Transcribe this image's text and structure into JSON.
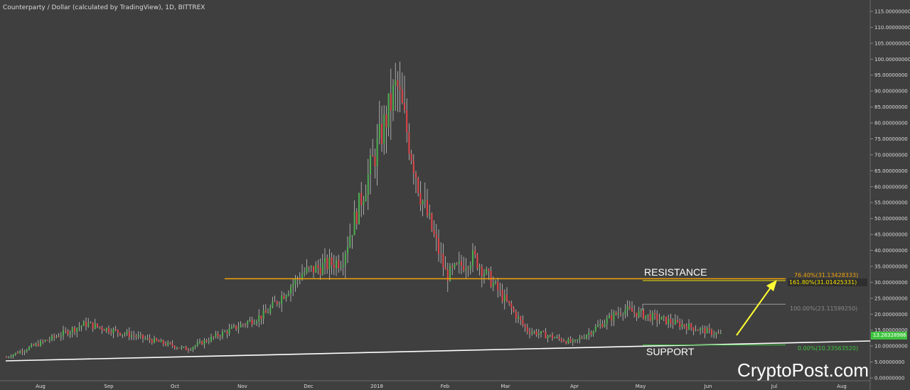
{
  "title": "Counterparty / Dollar (calculated by TradingView), 1D, BITTREX",
  "watermark": "CryptoPost.com",
  "colors": {
    "background": "#3f3f3f",
    "up_candle": "#4caf50",
    "down_candle": "#e0464b",
    "wick": "#d8d8d8",
    "resistance": "#f0a30a",
    "fib_161": "#f5e000",
    "fib_100": "#9a9a9a",
    "fib_0": "#3ec43e",
    "support_line": "#ffffff",
    "arrow": "#ffff33",
    "last_price": "#3ec43e"
  },
  "chart_data": {
    "type": "candlestick",
    "title": "Counterparty / Dollar (calculated by TradingView), 1D, BITTREX",
    "y_ticks": [
      "115.00000000",
      "110.00000000",
      "105.00000000",
      "100.00000000",
      "95.00000000",
      "90.00000000",
      "85.00000000",
      "80.00000000",
      "75.00000000",
      "70.00000000",
      "65.00000000",
      "60.00000000",
      "55.00000000",
      "50.00000000",
      "45.00000000",
      "40.00000000",
      "35.00000000",
      "30.00000000",
      "25.00000000",
      "20.00000000",
      "15.00000000",
      "10.00000000",
      "5.00000000",
      "0.00000000"
    ],
    "x_ticks": [
      "Aug",
      "Sep",
      "Oct",
      "Nov",
      "Dec",
      "2018",
      "Feb",
      "Mar",
      "Apr",
      "May",
      "Jun",
      "Jul",
      "Aug"
    ],
    "ylim": [
      0,
      115
    ],
    "grid": false,
    "annotations": {
      "resistance_label": "RESISTANCE",
      "support_label": "SUPPORT",
      "resistance_value": 31.13,
      "fib_76": "76.40%(31.13428333)",
      "fib_161": "161.80%(31.01425331)",
      "fib_100": "100.00%(23.11599250)",
      "fib_0": "0.00%(10.33563520)",
      "fib_100_value": 23.12,
      "fib_0_value": 10.34,
      "last_price": "13.28328986",
      "last_price_value": 13.28
    },
    "key_points": [
      {
        "x": "Jul 20",
        "close": 6.5
      },
      {
        "x": "Aug 28",
        "close": 17.0
      },
      {
        "x": "Oct 20",
        "close": 9.0
      },
      {
        "x": "Nov 25",
        "close": 20.0
      },
      {
        "x": "Dec 10",
        "close": 33.0
      },
      {
        "x": "Dec 28",
        "close": 37.0
      },
      {
        "x": "Jan 08",
        "close": 92.0
      },
      {
        "x": "Jan 20",
        "close": 58.0
      },
      {
        "x": "Feb 02",
        "close": 32.0
      },
      {
        "x": "Feb 15",
        "close": 38.0
      },
      {
        "x": "Mar 10",
        "close": 15.0
      },
      {
        "x": "Apr 05",
        "close": 11.0
      },
      {
        "x": "Apr 28",
        "close": 21.5
      },
      {
        "x": "Jun 05",
        "close": 13.3
      }
    ]
  }
}
